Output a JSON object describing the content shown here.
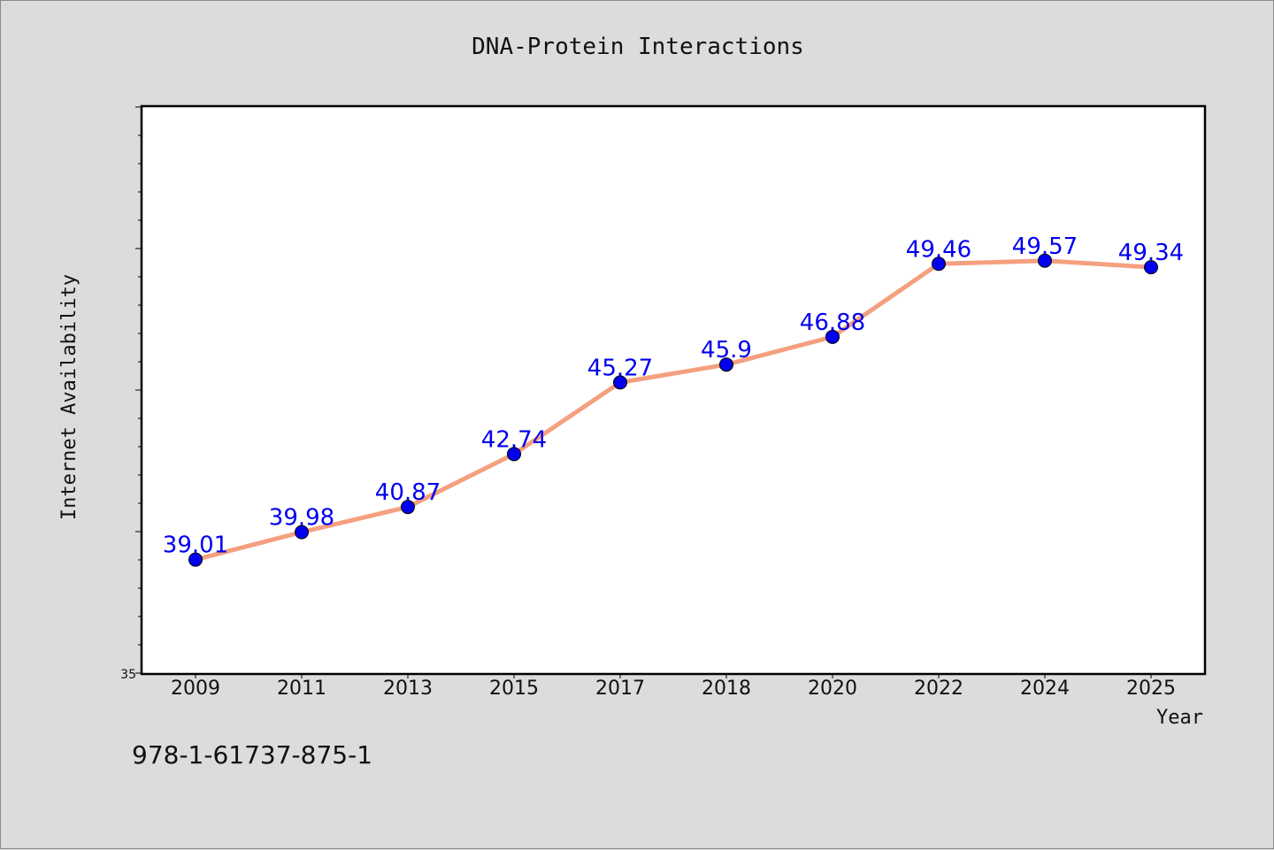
{
  "chart_data": {
    "type": "line",
    "title": "DNA-Protein Interactions",
    "xlabel": "Year",
    "ylabel": "Internet Availability",
    "categories": [
      "2009",
      "2011",
      "2013",
      "2015",
      "2017",
      "2018",
      "2020",
      "2022",
      "2024",
      "2025"
    ],
    "series": [
      {
        "values": [
          39.01,
          39.98,
          40.87,
          42.74,
          45.27,
          45.9,
          46.88,
          49.46,
          49.57,
          49.34
        ]
      }
    ],
    "data_labels": [
      "39.01",
      "39.98",
      "40.87",
      "42.74",
      "45.27",
      "45.9",
      "46.88",
      "49.46",
      "49.57",
      "49.34"
    ],
    "ylim": [
      35,
      55
    ],
    "yticks_labeled": [
      "35"
    ],
    "grid": false,
    "line_color": "#f4a07f",
    "marker_color": "#0000ee",
    "label_color": "#0000ee"
  },
  "footer": {
    "isbn": "978-1-61737-875-1"
  }
}
